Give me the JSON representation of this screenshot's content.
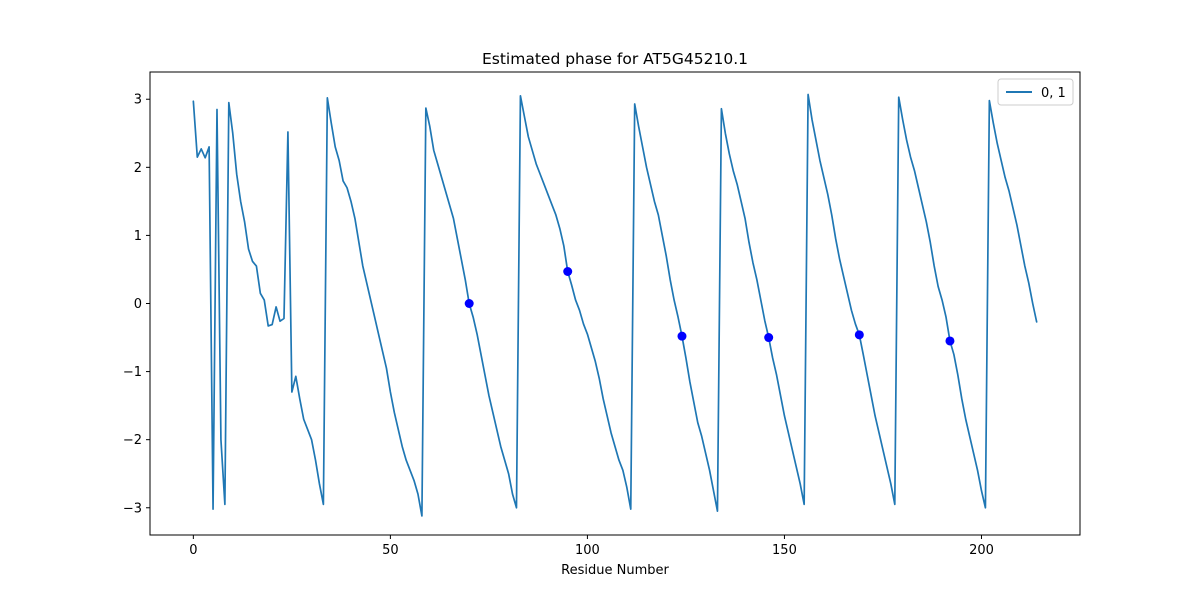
{
  "chart_data": {
    "type": "line",
    "title": "Estimated phase for AT5G45210.1",
    "xlabel": "Residue Number",
    "ylabel": "",
    "xlim": [
      -11,
      225
    ],
    "ylim": [
      -3.4,
      3.4
    ],
    "xticks": [
      0,
      50,
      100,
      150,
      200
    ],
    "yticks": [
      -3,
      -2,
      -1,
      0,
      1,
      2,
      3
    ],
    "xtick_labels": [
      "0",
      "50",
      "100",
      "150",
      "200"
    ],
    "ytick_labels": [
      "−3",
      "−2",
      "−1",
      "0",
      "1",
      "2",
      "3"
    ],
    "grid": false,
    "legend_position": "top-right",
    "series": [
      {
        "name": "0, 1",
        "color": "#1f77b4",
        "points": [
          [
            0,
            2.97
          ],
          [
            1,
            2.15
          ],
          [
            2,
            2.27
          ],
          [
            3,
            2.14
          ],
          [
            4,
            2.3
          ],
          [
            5,
            -3.02
          ],
          [
            6,
            2.85
          ],
          [
            7,
            -2.0
          ],
          [
            8,
            -2.95
          ],
          [
            9,
            2.95
          ],
          [
            10,
            2.5
          ],
          [
            11,
            1.9
          ],
          [
            12,
            1.5
          ],
          [
            13,
            1.2
          ],
          [
            14,
            0.8
          ],
          [
            15,
            0.62
          ],
          [
            16,
            0.55
          ],
          [
            17,
            0.15
          ],
          [
            18,
            0.05
          ],
          [
            19,
            -0.33
          ],
          [
            20,
            -0.31
          ],
          [
            21,
            -0.05
          ],
          [
            22,
            -0.26
          ],
          [
            23,
            -0.22
          ],
          [
            24,
            2.52
          ],
          [
            25,
            -1.3
          ],
          [
            26,
            -1.07
          ],
          [
            27,
            -1.4
          ],
          [
            28,
            -1.7
          ],
          [
            29,
            -1.85
          ],
          [
            30,
            -2.0
          ],
          [
            31,
            -2.3
          ],
          [
            32,
            -2.65
          ],
          [
            33,
            -2.95
          ],
          [
            34,
            3.02
          ],
          [
            35,
            2.65
          ],
          [
            36,
            2.3
          ],
          [
            37,
            2.1
          ],
          [
            38,
            1.8
          ],
          [
            39,
            1.7
          ],
          [
            40,
            1.5
          ],
          [
            41,
            1.25
          ],
          [
            42,
            0.9
          ],
          [
            43,
            0.55
          ],
          [
            44,
            0.3
          ],
          [
            45,
            0.05
          ],
          [
            46,
            -0.2
          ],
          [
            47,
            -0.45
          ],
          [
            48,
            -0.7
          ],
          [
            49,
            -0.95
          ],
          [
            50,
            -1.3
          ],
          [
            51,
            -1.6
          ],
          [
            52,
            -1.85
          ],
          [
            53,
            -2.1
          ],
          [
            54,
            -2.3
          ],
          [
            55,
            -2.45
          ],
          [
            56,
            -2.6
          ],
          [
            57,
            -2.8
          ],
          [
            58,
            -3.12
          ],
          [
            59,
            2.87
          ],
          [
            60,
            2.6
          ],
          [
            61,
            2.25
          ],
          [
            62,
            2.05
          ],
          [
            63,
            1.85
          ],
          [
            64,
            1.65
          ],
          [
            65,
            1.45
          ],
          [
            66,
            1.25
          ],
          [
            67,
            0.95
          ],
          [
            68,
            0.65
          ],
          [
            69,
            0.35
          ],
          [
            70,
            0.0
          ],
          [
            71,
            -0.2
          ],
          [
            72,
            -0.45
          ],
          [
            73,
            -0.75
          ],
          [
            74,
            -1.05
          ],
          [
            75,
            -1.35
          ],
          [
            76,
            -1.6
          ],
          [
            77,
            -1.85
          ],
          [
            78,
            -2.1
          ],
          [
            79,
            -2.3
          ],
          [
            80,
            -2.5
          ],
          [
            81,
            -2.8
          ],
          [
            82,
            -3.0
          ],
          [
            83,
            3.05
          ],
          [
            84,
            2.75
          ],
          [
            85,
            2.45
          ],
          [
            86,
            2.25
          ],
          [
            87,
            2.05
          ],
          [
            88,
            1.9
          ],
          [
            89,
            1.75
          ],
          [
            90,
            1.6
          ],
          [
            91,
            1.45
          ],
          [
            92,
            1.3
          ],
          [
            93,
            1.1
          ],
          [
            94,
            0.85
          ],
          [
            95,
            0.47
          ],
          [
            96,
            0.27
          ],
          [
            97,
            0.05
          ],
          [
            98,
            -0.1
          ],
          [
            99,
            -0.3
          ],
          [
            100,
            -0.45
          ],
          [
            101,
            -0.65
          ],
          [
            102,
            -0.85
          ],
          [
            103,
            -1.1
          ],
          [
            104,
            -1.4
          ],
          [
            105,
            -1.65
          ],
          [
            106,
            -1.9
          ],
          [
            107,
            -2.1
          ],
          [
            108,
            -2.3
          ],
          [
            109,
            -2.45
          ],
          [
            110,
            -2.7
          ],
          [
            111,
            -3.02
          ],
          [
            112,
            2.93
          ],
          [
            113,
            2.6
          ],
          [
            114,
            2.3
          ],
          [
            115,
            2.0
          ],
          [
            116,
            1.75
          ],
          [
            117,
            1.5
          ],
          [
            118,
            1.3
          ],
          [
            119,
            1.0
          ],
          [
            120,
            0.7
          ],
          [
            121,
            0.35
          ],
          [
            122,
            0.05
          ],
          [
            123,
            -0.2
          ],
          [
            124,
            -0.48
          ],
          [
            125,
            -0.8
          ],
          [
            126,
            -1.15
          ],
          [
            127,
            -1.45
          ],
          [
            128,
            -1.75
          ],
          [
            129,
            -1.95
          ],
          [
            130,
            -2.2
          ],
          [
            131,
            -2.45
          ],
          [
            132,
            -2.75
          ],
          [
            133,
            -3.05
          ],
          [
            134,
            2.86
          ],
          [
            135,
            2.5
          ],
          [
            136,
            2.2
          ],
          [
            137,
            1.95
          ],
          [
            138,
            1.75
          ],
          [
            139,
            1.5
          ],
          [
            140,
            1.25
          ],
          [
            141,
            0.9
          ],
          [
            142,
            0.6
          ],
          [
            143,
            0.35
          ],
          [
            144,
            0.05
          ],
          [
            145,
            -0.25
          ],
          [
            146,
            -0.5
          ],
          [
            147,
            -0.8
          ],
          [
            148,
            -1.05
          ],
          [
            149,
            -1.35
          ],
          [
            150,
            -1.65
          ],
          [
            151,
            -1.9
          ],
          [
            152,
            -2.15
          ],
          [
            153,
            -2.4
          ],
          [
            154,
            -2.65
          ],
          [
            155,
            -2.95
          ],
          [
            156,
            3.07
          ],
          [
            157,
            2.7
          ],
          [
            158,
            2.4
          ],
          [
            159,
            2.1
          ],
          [
            160,
            1.85
          ],
          [
            161,
            1.6
          ],
          [
            162,
            1.3
          ],
          [
            163,
            0.95
          ],
          [
            164,
            0.65
          ],
          [
            165,
            0.4
          ],
          [
            166,
            0.15
          ],
          [
            167,
            -0.1
          ],
          [
            168,
            -0.3
          ],
          [
            169,
            -0.46
          ],
          [
            170,
            -0.75
          ],
          [
            171,
            -1.05
          ],
          [
            172,
            -1.35
          ],
          [
            173,
            -1.65
          ],
          [
            174,
            -1.9
          ],
          [
            175,
            -2.15
          ],
          [
            176,
            -2.4
          ],
          [
            177,
            -2.65
          ],
          [
            178,
            -2.95
          ],
          [
            179,
            3.03
          ],
          [
            180,
            2.7
          ],
          [
            181,
            2.4
          ],
          [
            182,
            2.15
          ],
          [
            183,
            1.95
          ],
          [
            184,
            1.7
          ],
          [
            185,
            1.45
          ],
          [
            186,
            1.2
          ],
          [
            187,
            0.9
          ],
          [
            188,
            0.55
          ],
          [
            189,
            0.25
          ],
          [
            190,
            0.05
          ],
          [
            191,
            -0.2
          ],
          [
            192,
            -0.55
          ],
          [
            193,
            -0.75
          ],
          [
            194,
            -1.05
          ],
          [
            195,
            -1.4
          ],
          [
            196,
            -1.7
          ],
          [
            197,
            -1.95
          ],
          [
            198,
            -2.2
          ],
          [
            199,
            -2.45
          ],
          [
            200,
            -2.75
          ],
          [
            201,
            -3.0
          ],
          [
            202,
            2.98
          ],
          [
            203,
            2.65
          ],
          [
            204,
            2.35
          ],
          [
            205,
            2.1
          ],
          [
            206,
            1.85
          ],
          [
            207,
            1.65
          ],
          [
            208,
            1.4
          ],
          [
            209,
            1.15
          ],
          [
            210,
            0.85
          ],
          [
            211,
            0.55
          ],
          [
            212,
            0.3
          ],
          [
            213,
            0.0
          ],
          [
            214,
            -0.27
          ]
        ]
      }
    ],
    "markers": {
      "color": "#0000ff",
      "points": [
        [
          70,
          0.0
        ],
        [
          95,
          0.47
        ],
        [
          124,
          -0.48
        ],
        [
          146,
          -0.5
        ],
        [
          169,
          -0.46
        ],
        [
          192,
          -0.55
        ]
      ]
    }
  }
}
